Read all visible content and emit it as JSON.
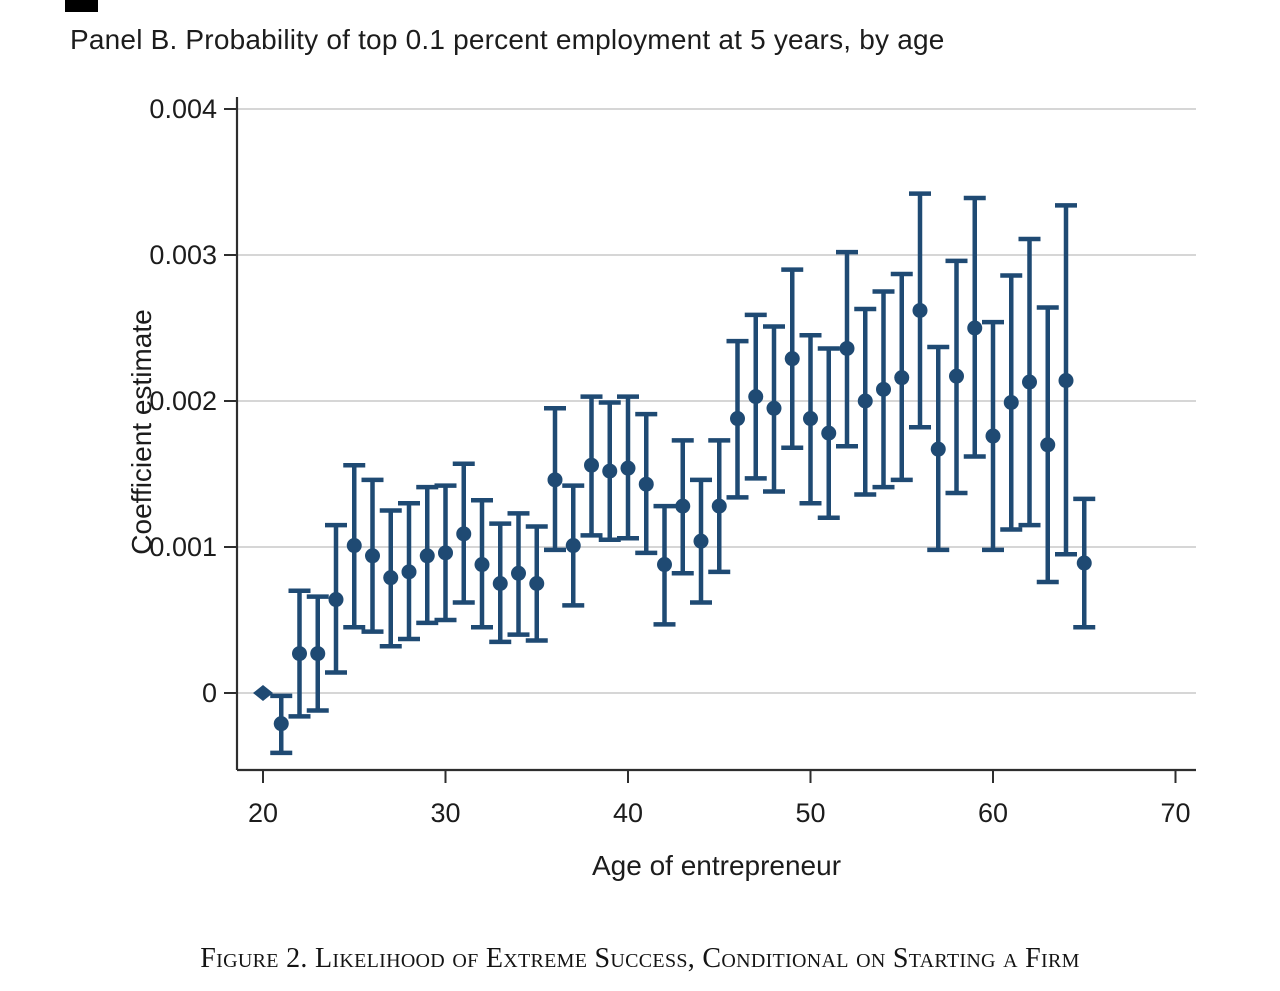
{
  "colors": {
    "marker": "#1f4a73",
    "grid": "#c9c9c9",
    "axis": "#2e2e2e",
    "text": "#1c1c1c"
  },
  "caption": "Figure 2. Likelihood of Extreme Success, Conditional on Starting a Firm",
  "chart_data": {
    "type": "scatter",
    "subtype": "coefficient-plot-with-95ci",
    "title": "Panel B. Probability of top 0.1 percent employment at 5 years, by age",
    "xlabel": "Age of entrepreneur",
    "ylabel": "Coefficient estimate",
    "xlim": [
      18.5,
      71
    ],
    "ylim": [
      -0.00053,
      0.00408
    ],
    "grid": "horizontal",
    "legend": "none",
    "x_ticks": [
      {
        "v": 20,
        "label": "20"
      },
      {
        "v": 30,
        "label": "30"
      },
      {
        "v": 40,
        "label": "40"
      },
      {
        "v": 50,
        "label": "50"
      },
      {
        "v": 60,
        "label": "60"
      },
      {
        "v": 70,
        "label": "70"
      }
    ],
    "y_ticks": [
      {
        "v": 0.004,
        "label": "0.004"
      },
      {
        "v": 0.003,
        "label": "0.003"
      },
      {
        "v": 0.002,
        "label": "0.002"
      },
      {
        "v": 0.001,
        "label": "0.001"
      },
      {
        "v": 0,
        "label": "0"
      }
    ],
    "points": [
      {
        "age": 20,
        "est": 0,
        "lo": null,
        "hi": null,
        "marker": "diamond",
        "note": "reference category"
      },
      {
        "age": 21,
        "est": -0.00021,
        "lo": -0.00041,
        "hi": -2e-05
      },
      {
        "age": 22,
        "est": 0.00027,
        "lo": -0.00016,
        "hi": 0.0007
      },
      {
        "age": 23,
        "est": 0.00027,
        "lo": -0.00012,
        "hi": 0.00066
      },
      {
        "age": 24,
        "est": 0.00064,
        "lo": 0.00014,
        "hi": 0.00115
      },
      {
        "age": 25,
        "est": 0.00101,
        "lo": 0.00045,
        "hi": 0.00156
      },
      {
        "age": 26,
        "est": 0.00094,
        "lo": 0.00042,
        "hi": 0.00146
      },
      {
        "age": 27,
        "est": 0.00079,
        "lo": 0.00032,
        "hi": 0.00125
      },
      {
        "age": 28,
        "est": 0.00083,
        "lo": 0.00037,
        "hi": 0.0013
      },
      {
        "age": 29,
        "est": 0.00094,
        "lo": 0.00048,
        "hi": 0.00141
      },
      {
        "age": 30,
        "est": 0.00096,
        "lo": 0.0005,
        "hi": 0.00142
      },
      {
        "age": 31,
        "est": 0.00109,
        "lo": 0.00062,
        "hi": 0.00157
      },
      {
        "age": 32,
        "est": 0.00088,
        "lo": 0.00045,
        "hi": 0.00132
      },
      {
        "age": 33,
        "est": 0.00075,
        "lo": 0.00035,
        "hi": 0.00116
      },
      {
        "age": 34,
        "est": 0.00082,
        "lo": 0.0004,
        "hi": 0.00123
      },
      {
        "age": 35,
        "est": 0.00075,
        "lo": 0.00036,
        "hi": 0.00114
      },
      {
        "age": 36,
        "est": 0.00146,
        "lo": 0.00098,
        "hi": 0.00195
      },
      {
        "age": 37,
        "est": 0.00101,
        "lo": 0.0006,
        "hi": 0.00142
      },
      {
        "age": 38,
        "est": 0.00156,
        "lo": 0.00108,
        "hi": 0.00203
      },
      {
        "age": 39,
        "est": 0.00152,
        "lo": 0.00105,
        "hi": 0.00199
      },
      {
        "age": 40,
        "est": 0.00154,
        "lo": 0.00106,
        "hi": 0.00203
      },
      {
        "age": 41,
        "est": 0.00143,
        "lo": 0.00096,
        "hi": 0.00191
      },
      {
        "age": 42,
        "est": 0.00088,
        "lo": 0.00047,
        "hi": 0.00128
      },
      {
        "age": 43,
        "est": 0.00128,
        "lo": 0.00082,
        "hi": 0.00173
      },
      {
        "age": 44,
        "est": 0.00104,
        "lo": 0.00062,
        "hi": 0.00146
      },
      {
        "age": 45,
        "est": 0.00128,
        "lo": 0.00083,
        "hi": 0.00173
      },
      {
        "age": 46,
        "est": 0.00188,
        "lo": 0.00134,
        "hi": 0.00241
      },
      {
        "age": 47,
        "est": 0.00203,
        "lo": 0.00147,
        "hi": 0.00259
      },
      {
        "age": 48,
        "est": 0.00195,
        "lo": 0.00138,
        "hi": 0.00251
      },
      {
        "age": 49,
        "est": 0.00229,
        "lo": 0.00168,
        "hi": 0.0029
      },
      {
        "age": 50,
        "est": 0.00188,
        "lo": 0.0013,
        "hi": 0.00245
      },
      {
        "age": 51,
        "est": 0.00178,
        "lo": 0.0012,
        "hi": 0.00236
      },
      {
        "age": 52,
        "est": 0.00236,
        "lo": 0.00169,
        "hi": 0.00302
      },
      {
        "age": 53,
        "est": 0.002,
        "lo": 0.00136,
        "hi": 0.00263
      },
      {
        "age": 54,
        "est": 0.00208,
        "lo": 0.00141,
        "hi": 0.00275
      },
      {
        "age": 55,
        "est": 0.00216,
        "lo": 0.00146,
        "hi": 0.00287
      },
      {
        "age": 56,
        "est": 0.00262,
        "lo": 0.00182,
        "hi": 0.00342
      },
      {
        "age": 57,
        "est": 0.00167,
        "lo": 0.00098,
        "hi": 0.00237
      },
      {
        "age": 58,
        "est": 0.00217,
        "lo": 0.00137,
        "hi": 0.00296
      },
      {
        "age": 59,
        "est": 0.0025,
        "lo": 0.00162,
        "hi": 0.00339
      },
      {
        "age": 60,
        "est": 0.00176,
        "lo": 0.00098,
        "hi": 0.00254
      },
      {
        "age": 61,
        "est": 0.00199,
        "lo": 0.00112,
        "hi": 0.00286
      },
      {
        "age": 62,
        "est": 0.00213,
        "lo": 0.00115,
        "hi": 0.00311
      },
      {
        "age": 63,
        "est": 0.0017,
        "lo": 0.00076,
        "hi": 0.00264
      },
      {
        "age": 64,
        "est": 0.00214,
        "lo": 0.00095,
        "hi": 0.00334
      },
      {
        "age": 65,
        "est": 0.00089,
        "lo": 0.00045,
        "hi": 0.00133
      }
    ]
  }
}
